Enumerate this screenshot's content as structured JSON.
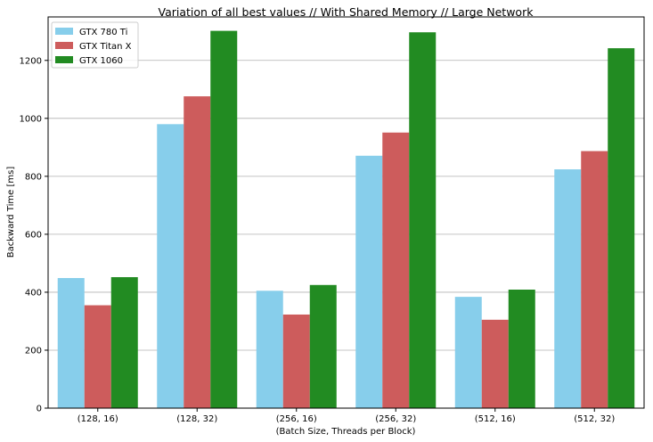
{
  "chart_data": {
    "type": "bar",
    "title": "Variation of all best values // With Shared Memory // Large Network",
    "xlabel": "(Batch Size, Threads per Block)",
    "ylabel": "Backward Time [ms]",
    "categories": [
      "(128, 16)",
      "(128, 32)",
      "(256, 16)",
      "(256, 32)",
      "(512, 16)",
      "(512, 32)"
    ],
    "series": [
      {
        "name": "GTX 780 Ti",
        "color": "#87ceeb",
        "values": [
          449,
          980,
          405,
          871,
          384,
          824
        ]
      },
      {
        "name": "GTX Titan X",
        "color": "#cd5c5c",
        "values": [
          355,
          1076,
          323,
          951,
          305,
          887
        ]
      },
      {
        "name": "GTX 1060",
        "color": "#228b22",
        "values": [
          452,
          1302,
          425,
          1297,
          409,
          1242
        ]
      }
    ],
    "ylim": [
      0,
      1350
    ],
    "yticks": [
      0,
      200,
      400,
      600,
      800,
      1000,
      1200
    ],
    "grid": "y",
    "legend": "top-left"
  }
}
